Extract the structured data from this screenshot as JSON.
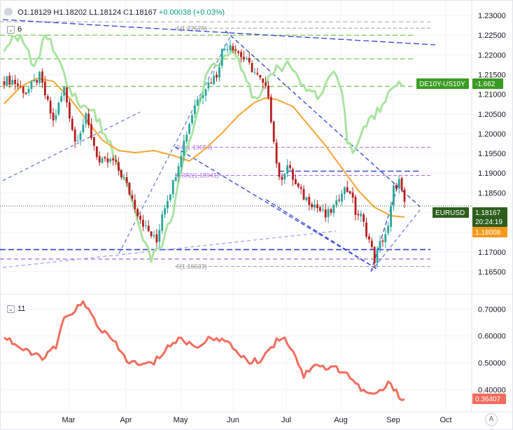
{
  "header": {
    "ohlc_text": "O1.18129 H1.18202 L1.18124 C1.18167",
    "change_text": "+0.00038 (+0.03%)",
    "pane1_badge": "6",
    "pane2_badge": "11",
    "settings_icon": "gear-icon",
    "auto_label": "A"
  },
  "chart_data": [
    {
      "type": "candlestick",
      "symbol": "EURUSD",
      "last_price": "1.18167",
      "countdown": "20:24:19",
      "ma_value": "1.18008",
      "yticks": [
        "1.23000",
        "1.22500",
        "1.22000",
        "1.21500",
        "1.21000",
        "1.20500",
        "1.20000",
        "1.19500",
        "1.19000",
        "1.18500",
        "1.18000",
        "1.17500",
        "1.17000",
        "1.16500"
      ],
      "ylim": [
        1.1625,
        1.2325
      ],
      "xticks": [
        "Mar",
        "Apr",
        "May",
        "Jun",
        "Jul",
        "Aug",
        "Sep",
        "Oct"
      ],
      "fib_levels": [
        {
          "label": "1(1.22676)",
          "value": 1.22676
        },
        {
          "label": "0.5(1.19654)",
          "value": 1.19654
        },
        {
          "label": "0.382(1.18941)",
          "value": 1.18941
        },
        {
          "label": "0(1.16633)",
          "value": 1.16633
        }
      ],
      "overlay_label": "DE10Y-US10Y",
      "overlay_value": "-1.662",
      "colors": {
        "up": "#26a69a",
        "down": "#b71c1c",
        "ma": "#f7a531",
        "overlay": "#a8e4a0",
        "trend": "#2f3fd6",
        "fib": "#a050d8",
        "symbol_tag": "#2e5e1e",
        "ma_tag": "#f59a1c",
        "overlay_tag": "#3a9b23"
      }
    },
    {
      "type": "line",
      "name": "11",
      "last_value": "0.36407",
      "yticks": [
        "0.70000",
        "0.60000",
        "0.50000",
        "0.40000"
      ],
      "ylim": [
        0.325,
        0.735
      ],
      "color": "#f26c5c"
    }
  ]
}
